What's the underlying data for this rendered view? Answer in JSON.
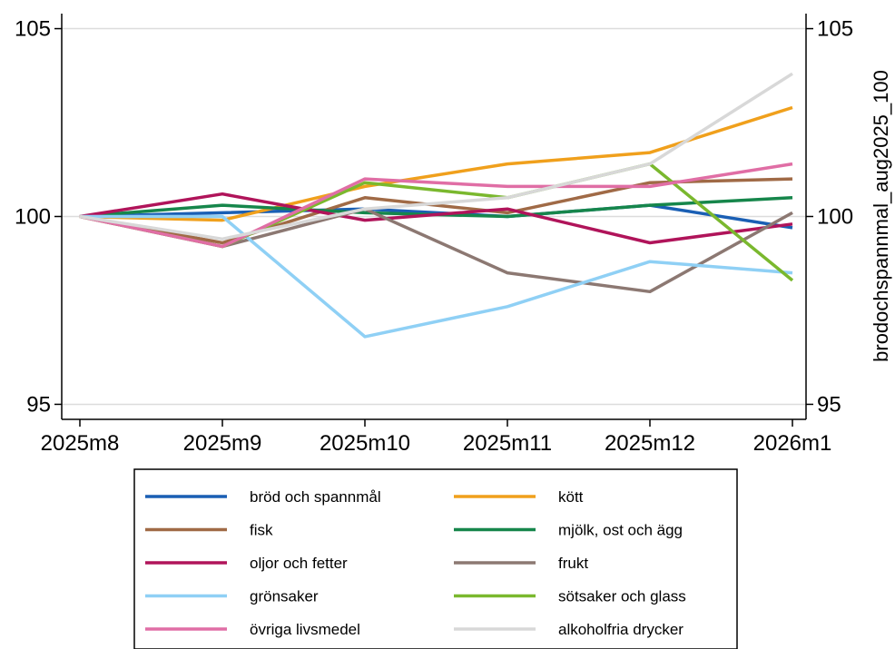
{
  "chart_data": {
    "type": "line",
    "title": "",
    "xlabel": "",
    "ylabel": "",
    "ylabel_right": "brodochspannmal_aug2025_100",
    "categories": [
      "2025m8",
      "2025m9",
      "2025m10",
      "2025m11",
      "2025m12",
      "2026m1"
    ],
    "ylim": [
      94.6,
      105.4
    ],
    "yticks": [
      95,
      100,
      105
    ],
    "grid": true,
    "legend_position": "bottom",
    "series": [
      {
        "name": "bröd och spannmål",
        "color": "#1a5fb4",
        "values": [
          100.0,
          100.1,
          100.2,
          100.0,
          100.3,
          99.7
        ]
      },
      {
        "name": "kött",
        "color": "#f0a01c",
        "values": [
          100.0,
          99.9,
          100.8,
          101.4,
          101.7,
          102.9
        ]
      },
      {
        "name": "fisk",
        "color": "#a06a46",
        "values": [
          100.0,
          99.3,
          100.5,
          100.1,
          100.9,
          101.0
        ]
      },
      {
        "name": "mjölk, ost och ägg",
        "color": "#16864b",
        "values": [
          100.0,
          100.3,
          100.1,
          100.0,
          100.3,
          100.5
        ]
      },
      {
        "name": "oljor och fetter",
        "color": "#b0145a",
        "values": [
          100.0,
          100.6,
          99.9,
          100.2,
          99.3,
          99.8
        ]
      },
      {
        "name": "frukt",
        "color": "#8c7872",
        "values": [
          100.0,
          99.2,
          100.2,
          98.5,
          98.0,
          100.1
        ]
      },
      {
        "name": "grönsaker",
        "color": "#8fd0f5",
        "values": [
          100.0,
          100.0,
          96.8,
          97.6,
          98.8,
          98.5
        ]
      },
      {
        "name": "sötsaker och glass",
        "color": "#7ab82e",
        "values": [
          100.0,
          99.2,
          100.9,
          100.5,
          101.4,
          98.3
        ]
      },
      {
        "name": "övriga livsmedel",
        "color": "#e06ea5",
        "values": [
          100.0,
          99.2,
          101.0,
          100.8,
          100.8,
          101.4
        ]
      },
      {
        "name": "alkoholfria drycker",
        "color": "#d8d8d8",
        "values": [
          100.0,
          99.4,
          100.2,
          100.5,
          101.4,
          103.8
        ]
      }
    ]
  }
}
